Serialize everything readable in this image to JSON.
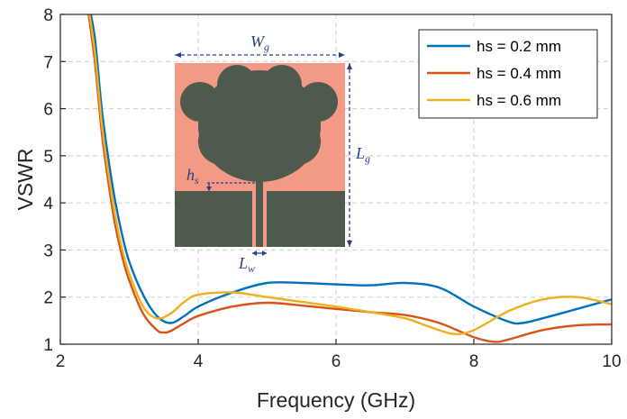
{
  "chart_data": {
    "type": "line",
    "xlabel": "Frequency (GHz)",
    "ylabel": "VSWR",
    "xlim": [
      2,
      10
    ],
    "ylim": [
      1,
      8
    ],
    "xticks": [
      2,
      4,
      6,
      8,
      10
    ],
    "yticks": [
      1,
      2,
      3,
      4,
      5,
      6,
      7,
      8
    ],
    "grid": true,
    "legend_position": "top-right",
    "series": [
      {
        "name": "hs = 0.2 mm",
        "color": "#0072BD",
        "x": [
          2.4,
          2.5,
          2.6,
          2.7,
          2.8,
          2.9,
          3.0,
          3.2,
          3.4,
          3.6,
          3.8,
          4.0,
          4.5,
          5.0,
          5.5,
          6.0,
          6.5,
          7.0,
          7.5,
          8.0,
          8.5,
          8.7,
          9.0,
          9.5,
          10.0
        ],
        "y": [
          8.3,
          7.5,
          6.0,
          4.9,
          4.0,
          3.3,
          2.75,
          2.05,
          1.6,
          1.45,
          1.6,
          1.8,
          2.1,
          2.3,
          2.3,
          2.27,
          2.25,
          2.3,
          2.2,
          1.8,
          1.48,
          1.45,
          1.55,
          1.75,
          1.95
        ]
      },
      {
        "name": "hs = 0.4 mm",
        "color": "#D95319",
        "x": [
          2.4,
          2.5,
          2.6,
          2.7,
          2.8,
          2.9,
          3.0,
          3.2,
          3.4,
          3.5,
          3.6,
          3.8,
          4.0,
          4.5,
          5.0,
          5.5,
          6.0,
          6.5,
          7.0,
          7.5,
          8.0,
          8.3,
          8.5,
          9.0,
          9.5,
          10.0
        ],
        "y": [
          8.1,
          7.0,
          5.5,
          4.4,
          3.5,
          2.85,
          2.35,
          1.65,
          1.3,
          1.25,
          1.28,
          1.45,
          1.6,
          1.8,
          1.88,
          1.82,
          1.75,
          1.68,
          1.62,
          1.45,
          1.15,
          1.05,
          1.1,
          1.3,
          1.4,
          1.42
        ]
      },
      {
        "name": "hs = 0.6 mm",
        "color": "#EDB120",
        "x": [
          2.4,
          2.5,
          2.6,
          2.7,
          2.8,
          2.9,
          3.0,
          3.2,
          3.4,
          3.6,
          3.8,
          4.0,
          4.5,
          5.0,
          5.5,
          6.0,
          6.5,
          7.0,
          7.3,
          7.7,
          8.0,
          8.5,
          9.0,
          9.5,
          10.0
        ],
        "y": [
          8.2,
          7.2,
          5.7,
          4.6,
          3.7,
          3.0,
          2.5,
          1.8,
          1.55,
          1.65,
          1.9,
          2.05,
          2.1,
          2.0,
          1.9,
          1.8,
          1.68,
          1.55,
          1.4,
          1.22,
          1.3,
          1.7,
          1.95,
          2.0,
          1.85
        ]
      }
    ],
    "inset": {
      "labels": {
        "width": "W",
        "width_sub": "g",
        "length": "L",
        "length_sub": "g",
        "hs": "h",
        "hs_sub": "s",
        "lw": "L",
        "lw_sub": "w"
      },
      "colors": {
        "substrate": "#F29A85",
        "metal": "#4E5A4B",
        "dimension": "#2a3f8a"
      }
    }
  }
}
